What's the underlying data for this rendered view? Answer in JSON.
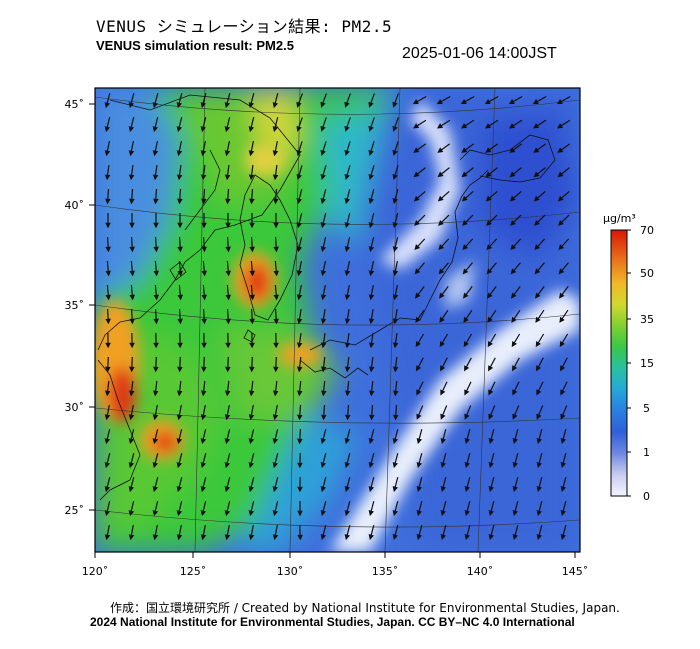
{
  "header": {
    "title_ja": "VENUS シミュレーション結果: PM2.5",
    "title_en": "VENUS simulation result: PM2.5",
    "timestamp": "2025-01-06 14:00JST"
  },
  "map": {
    "lon_labels": [
      "120˚",
      "125˚",
      "130˚",
      "135˚",
      "140˚",
      "145˚"
    ],
    "lat_labels": [
      "45˚",
      "40˚",
      "35˚",
      "30˚",
      "25˚"
    ],
    "lon_range": [
      120,
      145
    ],
    "lat_range": [
      23,
      46
    ],
    "colors": {
      "ocean_blue": "#3f6fdc",
      "deep_blue": "#2d4fd0",
      "clean_white": "#e8eefb",
      "cyan": "#2fb8c8",
      "green": "#3bc83a",
      "yellow": "#d8d83a",
      "orange": "#f0a020",
      "red": "#e03818"
    }
  },
  "colorbar": {
    "unit": "μg/m³",
    "ticks": [
      "70",
      "50",
      "35",
      "15",
      "5",
      "1",
      "0"
    ],
    "colors": [
      "#f0f0ff",
      "#c8ccf0",
      "#6080e0",
      "#2f58d8",
      "#2898e0",
      "#28b8c0",
      "#30c070",
      "#58d030",
      "#b8d830",
      "#f0d028",
      "#f0a020",
      "#e86018",
      "#d82010"
    ]
  },
  "footer": {
    "credit_ja": "作成：国立環境研究所 / Created by National Institute for Environmental Studies, Japan.",
    "credit_en": "2024 National Institute for Environmental Studies, Japan. CC BY–NC 4.0 International"
  }
}
